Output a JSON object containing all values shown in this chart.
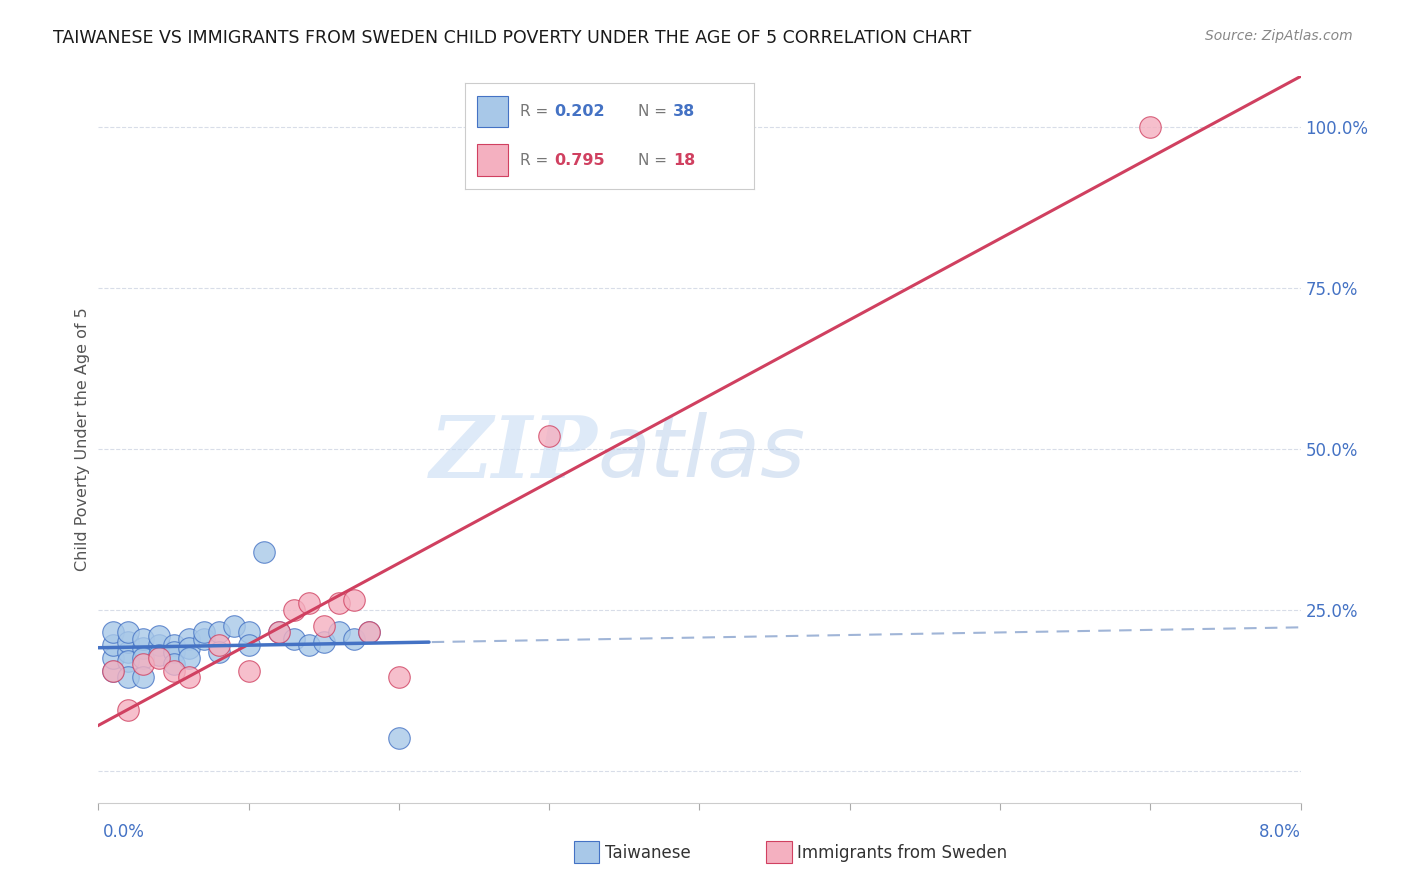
{
  "title": "TAIWANESE VS IMMIGRANTS FROM SWEDEN CHILD POVERTY UNDER THE AGE OF 5 CORRELATION CHART",
  "source": "Source: ZipAtlas.com",
  "ylabel": "Child Poverty Under the Age of 5",
  "xlim": [
    0.0,
    0.08
  ],
  "ylim": [
    -0.05,
    1.08
  ],
  "watermark_zip": "ZIP",
  "watermark_atlas": "atlas",
  "r1": "0.202",
  "n1": "38",
  "r2": "0.795",
  "n2": "18",
  "color_tw": "#a8c8e8",
  "color_sw": "#f4b0c0",
  "color_tw_edge": "#4472c4",
  "color_sw_edge": "#d04060",
  "color_trend_tw_solid": "#4472c4",
  "color_trend_sw_solid": "#d04060",
  "color_trend_dashed": "#90a8d0",
  "ytick_vals": [
    0.0,
    0.25,
    0.5,
    0.75,
    1.0
  ],
  "ytick_labels": [
    "",
    "25.0%",
    "50.0%",
    "75.0%",
    "100.0%"
  ],
  "tw_x": [
    0.001,
    0.001,
    0.001,
    0.001,
    0.002,
    0.002,
    0.002,
    0.002,
    0.003,
    0.003,
    0.003,
    0.004,
    0.004,
    0.004,
    0.005,
    0.005,
    0.005,
    0.006,
    0.006,
    0.006,
    0.007,
    0.007,
    0.008,
    0.008,
    0.009,
    0.01,
    0.01,
    0.011,
    0.012,
    0.013,
    0.014,
    0.015,
    0.016,
    0.017,
    0.018,
    0.002,
    0.003,
    0.02
  ],
  "tw_y": [
    0.155,
    0.175,
    0.195,
    0.215,
    0.185,
    0.2,
    0.17,
    0.215,
    0.19,
    0.205,
    0.175,
    0.195,
    0.21,
    0.18,
    0.195,
    0.185,
    0.165,
    0.205,
    0.19,
    0.175,
    0.205,
    0.215,
    0.215,
    0.185,
    0.225,
    0.215,
    0.195,
    0.34,
    0.215,
    0.205,
    0.195,
    0.2,
    0.215,
    0.205,
    0.215,
    0.145,
    0.145,
    0.05
  ],
  "sw_x": [
    0.001,
    0.002,
    0.003,
    0.004,
    0.005,
    0.006,
    0.008,
    0.01,
    0.012,
    0.013,
    0.014,
    0.015,
    0.016,
    0.017,
    0.018,
    0.02,
    0.03,
    0.07
  ],
  "sw_y": [
    0.155,
    0.095,
    0.165,
    0.175,
    0.155,
    0.145,
    0.195,
    0.155,
    0.215,
    0.25,
    0.26,
    0.225,
    0.26,
    0.265,
    0.215,
    0.145,
    0.52,
    1.0
  ]
}
